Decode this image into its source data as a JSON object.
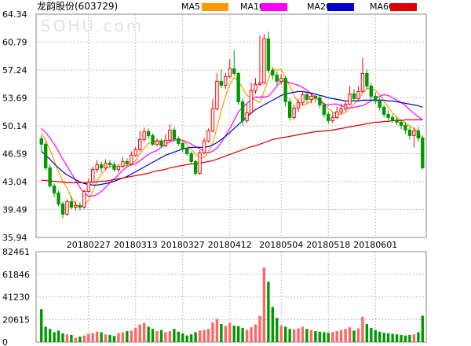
{
  "chart_data": {
    "type": "candlestick",
    "title": "龙韵股份(603729)",
    "watermark": "SOHU.com",
    "legend": [
      {
        "name": "MA5",
        "color": "#ff9900"
      },
      {
        "name": "MA10",
        "color": "#ff00ff"
      },
      {
        "name": "MA20",
        "color": "#0000cc"
      },
      {
        "name": "MA60",
        "color": "#dd0000"
      }
    ],
    "colors": {
      "up": "#ff0000",
      "down": "#009900",
      "grid": "#c0c0c0",
      "border": "#888888",
      "volume_up": "#ff6666",
      "volume_down": "#009900"
    },
    "price_axis": {
      "ticks": [
        "64.34",
        "60.79",
        "57.24",
        "53.69",
        "50.14",
        "46.59",
        "43.04",
        "39.49",
        "35.94"
      ],
      "ylim": [
        35.94,
        64.34
      ]
    },
    "volume_axis": {
      "ticks": [
        "82461",
        "61846",
        "41230",
        "20615",
        "0"
      ],
      "ylim": [
        0,
        82461
      ]
    },
    "date_labels": [
      "20180227",
      "20180313",
      "20180327",
      "20180412",
      "20180504",
      "20180518",
      "20180601"
    ],
    "candles": [
      [
        48.5,
        47.8,
        48.9,
        46.8
      ],
      [
        47.8,
        44.8,
        48.1,
        44.5
      ],
      [
        44.8,
        42.5,
        45.2,
        42.3
      ],
      [
        42.5,
        41.6,
        42.8,
        41.1
      ],
      [
        41.6,
        40.2,
        41.9,
        39.9
      ],
      [
        40.2,
        38.9,
        40.5,
        38.4
      ],
      [
        38.9,
        40.5,
        40.8,
        38.7
      ],
      [
        40.5,
        39.8,
        41.2,
        39.5
      ],
      [
        39.8,
        40.0,
        40.6,
        39.4
      ],
      [
        40.0,
        39.8,
        40.4,
        39.4
      ],
      [
        39.8,
        41.8,
        42.0,
        39.6
      ],
      [
        41.8,
        43.0,
        43.4,
        41.6
      ],
      [
        43.0,
        44.6,
        45.0,
        42.8
      ],
      [
        44.6,
        45.2,
        45.8,
        44.2
      ],
      [
        45.2,
        44.8,
        45.6,
        44.2
      ],
      [
        44.8,
        45.4,
        45.9,
        44.5
      ],
      [
        45.4,
        45.2,
        45.8,
        44.8
      ],
      [
        45.2,
        44.6,
        45.6,
        44.3
      ],
      [
        44.6,
        45.0,
        45.3,
        44.2
      ],
      [
        45.0,
        45.6,
        46.2,
        44.8
      ],
      [
        45.6,
        45.3,
        46.0,
        45.0
      ],
      [
        45.3,
        46.4,
        46.9,
        45.1
      ],
      [
        46.4,
        47.1,
        47.5,
        46.2
      ],
      [
        47.1,
        48.4,
        49.5,
        46.9
      ],
      [
        48.4,
        49.4,
        49.9,
        48.1
      ],
      [
        49.4,
        48.9,
        49.8,
        48.5
      ],
      [
        48.9,
        47.8,
        49.2,
        47.6
      ],
      [
        47.8,
        48.2,
        48.6,
        47.5
      ],
      [
        48.2,
        47.6,
        48.5,
        47.3
      ],
      [
        47.6,
        48.3,
        49.1,
        47.4
      ],
      [
        48.3,
        49.6,
        50.3,
        48.2
      ],
      [
        49.6,
        48.5,
        50.0,
        48.2
      ],
      [
        48.5,
        47.9,
        48.8,
        47.6
      ],
      [
        47.9,
        47.2,
        48.2,
        46.8
      ],
      [
        47.2,
        46.6,
        47.5,
        46.3
      ],
      [
        46.6,
        45.6,
        46.9,
        45.2
      ],
      [
        45.6,
        44.1,
        45.8,
        43.8
      ],
      [
        44.1,
        46.7,
        47.0,
        43.9
      ],
      [
        46.7,
        48.2,
        48.6,
        46.5
      ],
      [
        48.2,
        49.5,
        49.8,
        48.0
      ],
      [
        49.5,
        52.3,
        53.5,
        49.3
      ],
      [
        52.3,
        55.8,
        56.8,
        52.1
      ],
      [
        55.8,
        55.3,
        57.3,
        54.9
      ],
      [
        55.3,
        56.4,
        56.9,
        54.8
      ],
      [
        56.4,
        57.4,
        58.6,
        56.2
      ],
      [
        57.4,
        56.8,
        59.8,
        56.5
      ],
      [
        56.8,
        53.2,
        57.0,
        52.8
      ],
      [
        53.2,
        50.8,
        53.6,
        50.2
      ],
      [
        50.8,
        51.8,
        52.9,
        50.5
      ],
      [
        51.8,
        54.6,
        55.6,
        51.6
      ],
      [
        54.6,
        55.4,
        56.2,
        54.2
      ],
      [
        55.4,
        55.6,
        61.6,
        55.2
      ],
      [
        55.6,
        61.2,
        61.8,
        55.4
      ],
      [
        61.2,
        57.2,
        62.1,
        56.8
      ],
      [
        57.2,
        56.6,
        57.6,
        56.0
      ],
      [
        56.6,
        55.8,
        57.0,
        55.3
      ],
      [
        55.8,
        56.2,
        56.7,
        55.4
      ],
      [
        56.2,
        53.2,
        56.5,
        52.6
      ],
      [
        53.2,
        51.2,
        53.6,
        50.8
      ],
      [
        51.2,
        52.4,
        52.9,
        50.9
      ],
      [
        52.4,
        53.1,
        53.6,
        51.9
      ],
      [
        53.1,
        54.1,
        54.6,
        52.7
      ],
      [
        54.1,
        53.5,
        54.5,
        53.0
      ],
      [
        53.5,
        53.9,
        54.4,
        53.0
      ],
      [
        53.9,
        53.7,
        54.3,
        53.1
      ],
      [
        53.7,
        52.8,
        54.0,
        52.4
      ],
      [
        52.8,
        51.6,
        53.1,
        51.2
      ],
      [
        51.6,
        50.8,
        52.0,
        50.4
      ],
      [
        50.8,
        51.2,
        51.8,
        50.5
      ],
      [
        51.2,
        51.9,
        52.6,
        51.0
      ],
      [
        51.9,
        52.3,
        53.0,
        51.6
      ],
      [
        52.3,
        52.9,
        53.4,
        52.0
      ],
      [
        52.9,
        54.2,
        55.2,
        52.7
      ],
      [
        54.2,
        53.6,
        54.8,
        53.2
      ],
      [
        53.6,
        54.5,
        55.2,
        53.3
      ],
      [
        54.5,
        56.8,
        58.8,
        54.3
      ],
      [
        56.8,
        55.2,
        57.3,
        54.8
      ],
      [
        55.2,
        53.9,
        55.6,
        53.4
      ],
      [
        53.9,
        53.3,
        54.4,
        52.9
      ],
      [
        53.3,
        52.5,
        53.7,
        52.1
      ],
      [
        52.5,
        51.6,
        52.8,
        51.2
      ],
      [
        51.6,
        51.2,
        52.1,
        50.8
      ],
      [
        51.2,
        50.9,
        51.6,
        50.5
      ],
      [
        50.9,
        50.6,
        51.3,
        50.2
      ],
      [
        50.6,
        50.2,
        50.9,
        49.7
      ],
      [
        50.2,
        49.6,
        50.6,
        49.1
      ],
      [
        49.6,
        48.9,
        50.0,
        48.4
      ],
      [
        48.9,
        49.5,
        49.9,
        47.4
      ],
      [
        49.5,
        48.6,
        50.0,
        48.2
      ],
      [
        48.6,
        44.8,
        48.9,
        44.6
      ]
    ],
    "ma5": [
      49.2,
      48.3,
      47.1,
      45.7,
      44.3,
      43.1,
      42.2,
      41.0,
      40.2,
      39.8,
      40.0,
      40.7,
      41.8,
      43.1,
      44.0,
      44.6,
      45.0,
      44.9,
      44.9,
      45.0,
      45.1,
      45.3,
      45.7,
      46.6,
      47.3,
      47.9,
      48.1,
      48.3,
      48.2,
      48.2,
      48.3,
      48.4,
      48.4,
      48.3,
      47.8,
      47.2,
      46.5,
      46.0,
      46.1,
      46.8,
      47.9,
      49.9,
      52.1,
      53.9,
      55.4,
      56.3,
      55.8,
      54.9,
      54.0,
      53.7,
      53.4,
      53.1,
      54.5,
      56.1,
      57.4,
      57.2,
      57.3,
      56.3,
      55.2,
      54.0,
      53.1,
      52.8,
      52.9,
      53.3,
      53.7,
      53.5,
      53.0,
      52.3,
      51.9,
      51.7,
      51.6,
      51.8,
      52.4,
      52.9,
      53.5,
      54.3,
      54.9,
      54.8,
      54.7,
      54.0,
      53.3,
      52.5,
      51.8,
      51.2,
      50.9,
      50.5,
      50.1,
      49.8,
      49.4,
      48.3
    ],
    "ma10": [
      49.8,
      49.3,
      48.6,
      47.8,
      46.9,
      45.9,
      45.0,
      44.1,
      43.2,
      42.3,
      41.6,
      41.2,
      41.2,
      41.4,
      41.8,
      42.3,
      42.9,
      43.4,
      43.9,
      44.5,
      44.9,
      45.2,
      45.3,
      45.7,
      46.1,
      46.5,
      46.8,
      47.0,
      47.4,
      47.8,
      48.1,
      48.3,
      48.4,
      48.3,
      48.1,
      47.8,
      47.5,
      47.2,
      46.9,
      46.7,
      46.9,
      47.3,
      48.0,
      48.9,
      49.8,
      50.8,
      51.9,
      52.5,
      53.0,
      53.5,
      53.8,
      53.8,
      53.8,
      53.9,
      54.5,
      55.2,
      55.8,
      55.8,
      55.6,
      55.5,
      55.3,
      55.0,
      54.7,
      54.2,
      53.8,
      53.3,
      52.9,
      52.8,
      52.9,
      52.9,
      52.7,
      52.5,
      52.4,
      52.5,
      52.6,
      52.7,
      53.0,
      53.3,
      53.6,
      53.9,
      54.1,
      54.0,
      53.7,
      53.4,
      53.1,
      52.7,
      52.2,
      51.7,
      51.3,
      50.9
    ],
    "ma20": [
      46.9,
      46.4,
      45.9,
      45.3,
      44.8,
      44.3,
      43.9,
      43.6,
      43.3,
      43.0,
      42.8,
      42.7,
      42.6,
      42.6,
      42.7,
      42.8,
      42.9,
      43.1,
      43.3,
      43.5,
      43.7,
      44.0,
      44.3,
      44.6,
      44.9,
      45.2,
      45.5,
      45.8,
      46.1,
      46.4,
      46.6,
      46.8,
      47.0,
      47.2,
      47.3,
      47.4,
      47.4,
      47.4,
      47.4,
      47.5,
      47.7,
      48.0,
      48.4,
      48.8,
      49.3,
      49.8,
      50.3,
      50.8,
      51.3,
      51.8,
      52.2,
      52.5,
      52.8,
      53.1,
      53.4,
      53.7,
      54.0,
      54.2,
      54.3,
      54.4,
      54.5,
      54.5,
      54.4,
      54.3,
      54.2,
      54.0,
      53.9,
      53.7,
      53.6,
      53.5,
      53.4,
      53.3,
      53.3,
      53.3,
      53.3,
      53.4,
      53.4,
      53.4,
      53.4,
      53.4,
      53.4,
      53.3,
      53.3,
      53.2,
      53.1,
      53.0,
      52.9,
      52.8,
      52.7,
      52.5
    ],
    "ma60": [
      43.2,
      43.2,
      43.1,
      43.1,
      43.0,
      43.0,
      42.9,
      42.9,
      42.9,
      42.9,
      42.9,
      42.9,
      43.0,
      43.0,
      43.1,
      43.1,
      43.2,
      43.3,
      43.4,
      43.5,
      43.6,
      43.7,
      43.8,
      43.9,
      44.0,
      44.1,
      44.3,
      44.4,
      44.5,
      44.6,
      44.8,
      44.9,
      45.0,
      45.1,
      45.2,
      45.3,
      45.3,
      45.4,
      45.5,
      45.6,
      45.7,
      45.9,
      46.1,
      46.3,
      46.5,
      46.7,
      46.9,
      47.1,
      47.3,
      47.5,
      47.6,
      47.8,
      48.0,
      48.2,
      48.4,
      48.5,
      48.6,
      48.7,
      48.8,
      48.9,
      49.0,
      49.1,
      49.2,
      49.3,
      49.4,
      49.4,
      49.5,
      49.5,
      49.6,
      49.7,
      49.8,
      49.9,
      50.0,
      50.1,
      50.2,
      50.3,
      50.4,
      50.5,
      50.6,
      50.6,
      50.7,
      50.7,
      50.8,
      50.8,
      50.8,
      50.9,
      50.9,
      50.9,
      50.9,
      50.9
    ],
    "volumes": [
      30000,
      14000,
      12000,
      9000,
      10500,
      8000,
      7000,
      6500,
      4000,
      5000,
      6000,
      7500,
      8000,
      9500,
      9000,
      7000,
      6500,
      5500,
      8000,
      9000,
      10000,
      10500,
      13000,
      16000,
      17500,
      14000,
      12000,
      10000,
      11000,
      9000,
      10000,
      12000,
      9500,
      8000,
      6000,
      7000,
      9000,
      10500,
      11000,
      12000,
      18000,
      21000,
      16500,
      14500,
      17500,
      15000,
      14500,
      13000,
      11000,
      13500,
      16000,
      24000,
      68000,
      55000,
      32000,
      22000,
      15000,
      14000,
      12000,
      11500,
      12500,
      14000,
      12000,
      11000,
      10000,
      9500,
      9000,
      8500,
      9000,
      10000,
      11000,
      12000,
      13500,
      10500,
      12500,
      23000,
      16500,
      13000,
      11000,
      9500,
      8500,
      8000,
      7500,
      7000,
      6500,
      6000,
      6500,
      7000,
      9000,
      24000
    ]
  }
}
